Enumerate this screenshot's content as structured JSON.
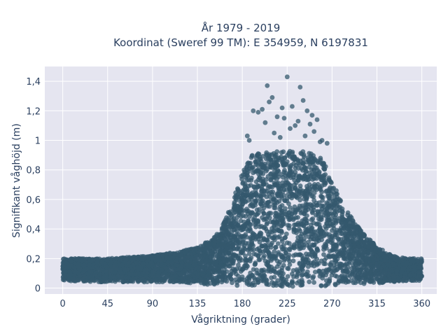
{
  "chart_data": {
    "type": "scatter",
    "title_line1": "År 1979 - 2019",
    "title_line2": "Koordinat (Sweref 99 TM): E 354959, N 6197831",
    "xlabel": "Vågriktning (grader)",
    "ylabel": "Signifikant våghöjd (m)",
    "xlim": [
      -18,
      375
    ],
    "ylim": [
      -0.04,
      1.5
    ],
    "xticks": [
      0,
      45,
      90,
      135,
      180,
      225,
      270,
      315,
      360
    ],
    "xtick_labels": [
      "0",
      "45",
      "90",
      "135",
      "180",
      "225",
      "270",
      "315",
      "360"
    ],
    "yticks": [
      0,
      0.2,
      0.4,
      0.6,
      0.8,
      1.0,
      1.2,
      1.4
    ],
    "ytick_labels": [
      "0",
      "0,2",
      "0,4",
      "0,6",
      "0,8",
      "1",
      "1,2",
      "1,4"
    ],
    "grid": true,
    "marker_color": "#34586e",
    "plot_background": "#e5e5f0",
    "envelope": {
      "x": [
        0,
        45,
        90,
        120,
        135,
        150,
        160,
        170,
        180,
        190,
        200,
        225,
        250,
        260,
        270,
        285,
        300,
        315,
        330,
        345,
        360
      ],
      "y_max": [
        0.2,
        0.2,
        0.22,
        0.25,
        0.28,
        0.33,
        0.42,
        0.58,
        0.78,
        0.9,
        0.92,
        0.93,
        0.92,
        0.88,
        0.72,
        0.52,
        0.38,
        0.28,
        0.22,
        0.2,
        0.2
      ],
      "y_min": [
        0.05,
        0.04,
        0.04,
        0.04,
        0.03,
        0.02,
        0.02,
        0.02,
        0.01,
        0.01,
        0.01,
        0.01,
        0.01,
        0.01,
        0.02,
        0.02,
        0.03,
        0.03,
        0.04,
        0.05,
        0.05
      ]
    },
    "outliers": {
      "x": [
        187,
        191,
        200,
        205,
        207,
        210,
        215,
        220,
        225,
        230,
        233,
        238,
        241,
        245,
        250,
        255,
        260,
        265,
        185,
        196,
        212,
        222,
        228,
        236,
        243,
        248,
        252,
        258,
        203,
        218
      ],
      "y": [
        1.0,
        1.2,
        1.21,
        1.37,
        1.26,
        1.29,
        1.16,
        1.22,
        1.43,
        1.23,
        1.1,
        1.36,
        1.27,
        1.2,
        1.17,
        1.14,
        1.0,
        0.98,
        1.03,
        1.19,
        1.05,
        1.15,
        1.08,
        1.13,
        1.03,
        1.11,
        1.06,
        0.99,
        1.12,
        1.02
      ]
    }
  }
}
